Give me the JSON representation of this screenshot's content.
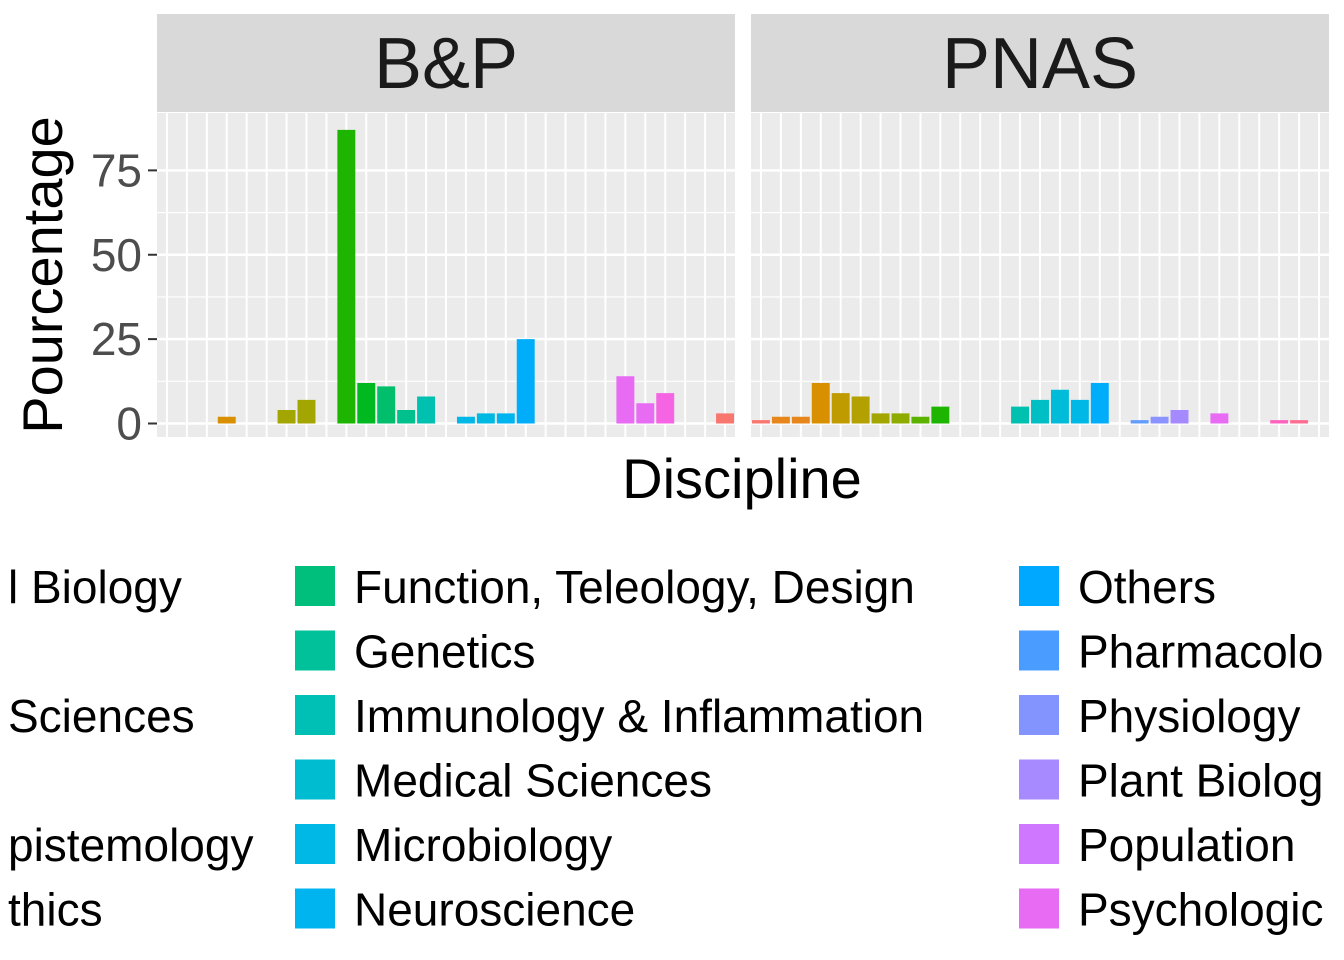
{
  "chart_data": {
    "type": "bar",
    "xlabel": "Discipline",
    "ylabel": "Pourcentage",
    "y_ticks": [
      "0",
      "25",
      "50",
      "75"
    ],
    "ylim": [
      -4,
      92
    ],
    "grid": "on",
    "legend_position": "bottom",
    "panels": [
      {
        "name": "B&P",
        "bars": [
          {
            "slot": 3,
            "value": 2,
            "color": "#D89000"
          },
          {
            "slot": 6,
            "value": 4,
            "color": "#A3A500"
          },
          {
            "slot": 7,
            "value": 7,
            "color": "#A3A500"
          },
          {
            "slot": 9,
            "value": 87,
            "color": "#1DB500"
          },
          {
            "slot": 10,
            "value": 12,
            "color": "#00B81F"
          },
          {
            "slot": 11,
            "value": 11,
            "color": "#00BE6C"
          },
          {
            "slot": 12,
            "value": 4,
            "color": "#00C08D"
          },
          {
            "slot": 13,
            "value": 8,
            "color": "#00C0AF"
          },
          {
            "slot": 15,
            "value": 2,
            "color": "#00B8E5"
          },
          {
            "slot": 16,
            "value": 3,
            "color": "#00B9E3"
          },
          {
            "slot": 17,
            "value": 3,
            "color": "#00B4EF"
          },
          {
            "slot": 18,
            "value": 25,
            "color": "#00ADFA"
          },
          {
            "slot": 23,
            "value": 14,
            "color": "#E76BF3"
          },
          {
            "slot": 24,
            "value": 6,
            "color": "#E76BF3"
          },
          {
            "slot": 25,
            "value": 9,
            "color": "#F564E3"
          },
          {
            "slot": 28,
            "value": 3,
            "color": "#F8766D"
          }
        ]
      },
      {
        "name": "PNAS",
        "bars": [
          {
            "slot": 0,
            "value": 1,
            "color": "#F8766D"
          },
          {
            "slot": 1,
            "value": 2,
            "color": "#E7861B"
          },
          {
            "slot": 2,
            "value": 2,
            "color": "#E7861B"
          },
          {
            "slot": 3,
            "value": 12,
            "color": "#D89000"
          },
          {
            "slot": 4,
            "value": 9,
            "color": "#C09B00"
          },
          {
            "slot": 5,
            "value": 8,
            "color": "#B2A100"
          },
          {
            "slot": 6,
            "value": 3,
            "color": "#A3A500"
          },
          {
            "slot": 7,
            "value": 3,
            "color": "#8EAB00"
          },
          {
            "slot": 8,
            "value": 2,
            "color": "#5BB300"
          },
          {
            "slot": 9,
            "value": 5,
            "color": "#1DB500"
          },
          {
            "slot": 13,
            "value": 5,
            "color": "#00C0AF"
          },
          {
            "slot": 14,
            "value": 7,
            "color": "#00BFC4"
          },
          {
            "slot": 15,
            "value": 10,
            "color": "#00BCD8"
          },
          {
            "slot": 16,
            "value": 7,
            "color": "#00B8E5"
          },
          {
            "slot": 17,
            "value": 12,
            "color": "#00ADFA"
          },
          {
            "slot": 19,
            "value": 1,
            "color": "#619CFF"
          },
          {
            "slot": 20,
            "value": 2,
            "color": "#8B93FF"
          },
          {
            "slot": 21,
            "value": 4,
            "color": "#A58AFF"
          },
          {
            "slot": 23,
            "value": 3,
            "color": "#E76BF3"
          },
          {
            "slot": 26,
            "value": 1,
            "color": "#FF62BC"
          },
          {
            "slot": 27,
            "value": 1,
            "color": "#FF6C91"
          }
        ]
      }
    ],
    "legend_columns": [
      {
        "entries": [
          {
            "label": "l Biology",
            "color": null
          },
          {
            "label": "",
            "color": null
          },
          {
            "label": "Sciences",
            "color": null
          },
          {
            "label": "",
            "color": null
          },
          {
            "label": "pistemology",
            "color": null
          },
          {
            "label": "thics",
            "color": null
          }
        ]
      },
      {
        "entries": [
          {
            "label": "Function, Teleology, Design",
            "color": "#00BF7D"
          },
          {
            "label": "Genetics",
            "color": "#00C19A"
          },
          {
            "label": "Immunology & Inflammation",
            "color": "#00C0B5"
          },
          {
            "label": "Medical Sciences",
            "color": "#00BCD0"
          },
          {
            "label": "Microbiology",
            "color": "#00B8E5"
          },
          {
            "label": "Neuroscience",
            "color": "#00B4F0"
          }
        ]
      },
      {
        "entries": [
          {
            "label": "Others",
            "color": "#00A9FF"
          },
          {
            "label": "Pharmacolo",
            "color": "#4A9DFF"
          },
          {
            "label": "Physiology",
            "color": "#8494FF"
          },
          {
            "label": "Plant Biolog",
            "color": "#A78AFF"
          },
          {
            "label": "Population",
            "color": "#CF78FF"
          },
          {
            "label": "Psychologic",
            "color": "#E76BF3"
          }
        ]
      }
    ]
  }
}
